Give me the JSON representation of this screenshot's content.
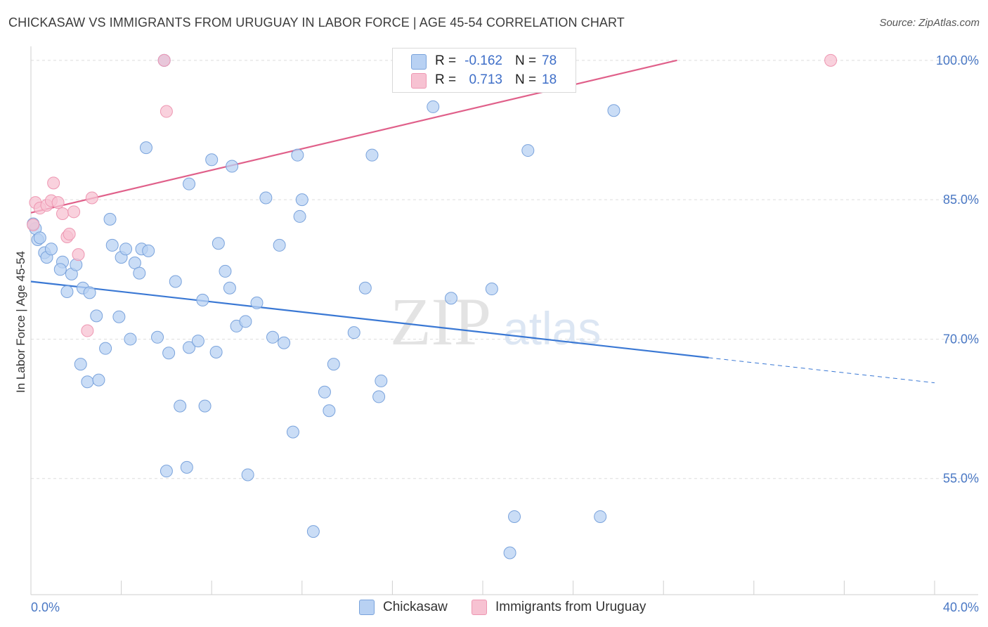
{
  "header": {
    "title": "CHICKASAW VS IMMIGRANTS FROM URUGUAY IN LABOR FORCE | AGE 45-54 CORRELATION CHART",
    "source": "Source: ZipAtlas.com"
  },
  "watermark": {
    "part1": "ZIP",
    "part2": "atlas"
  },
  "legend_top": {
    "rows": [
      {
        "r_label": "R =",
        "r_value": "-0.162",
        "n_label": "N =",
        "n_value": "78"
      },
      {
        "r_label": "R =",
        "r_value": "0.713",
        "n_label": "N =",
        "n_value": "18"
      }
    ]
  },
  "legend_bottom": {
    "items": [
      "Chickasaw",
      "Immigrants from Uruguay"
    ]
  },
  "colors": {
    "blue_fill": "#b8d1f3",
    "blue_stroke": "#7aa3dc",
    "blue_line": "#3a78d4",
    "pink_fill": "#f7c2d2",
    "pink_stroke": "#ee97b2",
    "pink_line": "#e0608a",
    "grid": "#dedede",
    "tick_text": "#4a78c4"
  },
  "chart_data": {
    "type": "scatter",
    "title": "CHICKASAW VS IMMIGRANTS FROM URUGUAY IN LABOR FORCE | AGE 45-54 CORRELATION CHART",
    "xlabel": "",
    "ylabel": "In Labor Force | Age 45-54",
    "xlim": [
      0,
      40
    ],
    "ylim": [
      42.5,
      101.5
    ],
    "x_tick_labels": [
      "0.0%",
      "40.0%"
    ],
    "y_ticks": [
      55,
      70,
      85,
      100
    ],
    "y_tick_labels": [
      "55.0%",
      "70.0%",
      "85.0%",
      "100.0%"
    ],
    "grid": true,
    "legend_position": "top-center",
    "series": [
      {
        "name": "Chickasaw",
        "points": [
          [
            0.3,
            80.7
          ],
          [
            0.6,
            79.3
          ],
          [
            0.7,
            78.8
          ],
          [
            0.9,
            79.7
          ],
          [
            1.4,
            78.3
          ],
          [
            1.3,
            77.5
          ],
          [
            1.8,
            77.0
          ],
          [
            2.0,
            78.0
          ],
          [
            1.6,
            75.1
          ],
          [
            2.3,
            75.5
          ],
          [
            2.6,
            75.0
          ],
          [
            2.2,
            67.3
          ],
          [
            2.5,
            65.4
          ],
          [
            3.0,
            65.6
          ],
          [
            2.9,
            72.5
          ],
          [
            3.3,
            69.0
          ],
          [
            3.5,
            82.9
          ],
          [
            3.6,
            80.1
          ],
          [
            3.9,
            72.4
          ],
          [
            4.0,
            78.8
          ],
          [
            4.2,
            79.7
          ],
          [
            4.4,
            70.0
          ],
          [
            4.6,
            78.2
          ],
          [
            4.9,
            79.7
          ],
          [
            4.8,
            77.1
          ],
          [
            5.2,
            79.5
          ],
          [
            5.1,
            90.6
          ],
          [
            5.6,
            70.2
          ],
          [
            6.1,
            68.5
          ],
          [
            6.0,
            55.8
          ],
          [
            6.4,
            76.2
          ],
          [
            6.6,
            62.8
          ],
          [
            6.9,
            56.2
          ],
          [
            7.0,
            86.7
          ],
          [
            7.0,
            69.1
          ],
          [
            7.4,
            69.8
          ],
          [
            7.6,
            74.2
          ],
          [
            7.7,
            62.8
          ],
          [
            8.0,
            89.3
          ],
          [
            8.2,
            68.6
          ],
          [
            8.3,
            80.3
          ],
          [
            8.6,
            77.3
          ],
          [
            8.8,
            75.5
          ],
          [
            8.9,
            88.6
          ],
          [
            9.1,
            71.4
          ],
          [
            9.5,
            71.9
          ],
          [
            9.6,
            55.4
          ],
          [
            10.0,
            73.9
          ],
          [
            10.4,
            85.2
          ],
          [
            10.7,
            70.2
          ],
          [
            11.0,
            80.1
          ],
          [
            11.2,
            69.6
          ],
          [
            11.6,
            60.0
          ],
          [
            11.8,
            89.8
          ],
          [
            11.9,
            83.2
          ],
          [
            12.0,
            85.0
          ],
          [
            12.5,
            49.3
          ],
          [
            13.0,
            64.3
          ],
          [
            13.2,
            62.3
          ],
          [
            13.4,
            67.3
          ],
          [
            14.3,
            70.7
          ],
          [
            14.8,
            75.5
          ],
          [
            15.1,
            89.8
          ],
          [
            15.4,
            63.8
          ],
          [
            15.5,
            65.5
          ],
          [
            17.8,
            95.0
          ],
          [
            18.6,
            74.4
          ],
          [
            20.4,
            75.4
          ],
          [
            21.2,
            47.0
          ],
          [
            21.4,
            50.9
          ],
          [
            22.0,
            90.3
          ],
          [
            25.2,
            50.9
          ],
          [
            25.8,
            94.6
          ],
          [
            5.9,
            100
          ],
          [
            5.9,
            100
          ],
          [
            0.2,
            81.9
          ],
          [
            0.1,
            82.4
          ],
          [
            0.4,
            80.9
          ]
        ],
        "trend": {
          "x": [
            0,
            30.0
          ],
          "y": [
            76.2,
            68.0
          ],
          "dashed_to": [
            40,
            65.3
          ]
        }
      },
      {
        "name": "Immigrants from Uruguay",
        "points": [
          [
            0.2,
            84.7
          ],
          [
            0.4,
            84.1
          ],
          [
            0.7,
            84.4
          ],
          [
            0.9,
            84.9
          ],
          [
            1.0,
            86.8
          ],
          [
            1.2,
            84.7
          ],
          [
            1.4,
            83.5
          ],
          [
            1.6,
            81.0
          ],
          [
            1.7,
            81.3
          ],
          [
            1.9,
            83.7
          ],
          [
            2.1,
            79.1
          ],
          [
            2.5,
            70.9
          ],
          [
            2.7,
            85.2
          ],
          [
            5.9,
            100
          ],
          [
            6.0,
            94.5
          ],
          [
            23.8,
            100
          ],
          [
            35.4,
            100
          ],
          [
            0.1,
            82.3
          ]
        ],
        "trend": {
          "x": [
            0,
            28.6
          ],
          "y": [
            83.6,
            100
          ]
        }
      }
    ]
  }
}
